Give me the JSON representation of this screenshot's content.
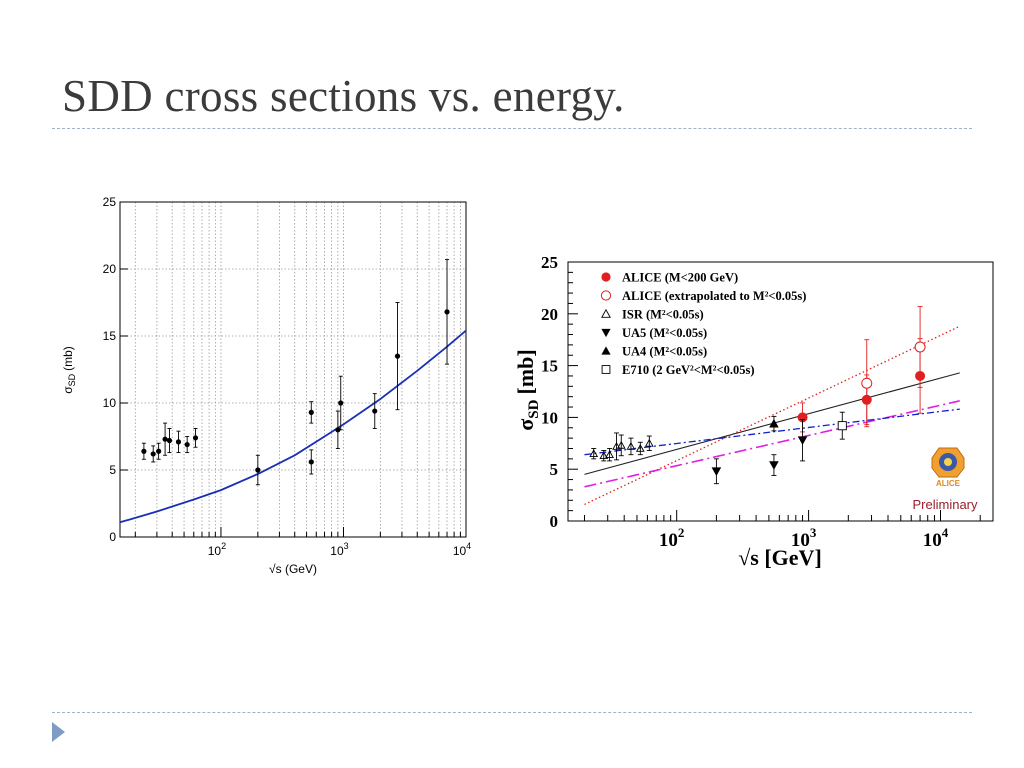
{
  "slide": {
    "title": "SDD cross sections vs. energy."
  },
  "colors": {
    "title_text": "#3b3b3b",
    "separator": "#9fb2c8",
    "nav_arrow": "#7f9cc4",
    "fit_curve": "#1a2fb5",
    "alice_red": "#e02020",
    "preliminary": "#9a1f2a"
  },
  "icons": {
    "nav": "triangle-right-icon",
    "logo": "alice-logo-icon"
  },
  "chart_data": [
    {
      "type": "scatter",
      "title": "",
      "xlabel": "√s (GeV)",
      "ylabel": "σ_SD (mb)",
      "ylabel_main": "σ",
      "ylabel_sub": "SD",
      "ylabel_unit": "(mb)",
      "xscale": "log",
      "xlim": [
        15,
        10000
      ],
      "ylim": [
        0,
        25
      ],
      "yticks": [
        0,
        5,
        10,
        15,
        20,
        25
      ],
      "xtick_labels": [
        {
          "value": 100,
          "base": "10",
          "exp": "2"
        },
        {
          "value": 1000,
          "base": "10",
          "exp": "3"
        },
        {
          "value": 10000,
          "base": "10",
          "exp": "4"
        }
      ],
      "grid": true,
      "series": [
        {
          "kind": "points",
          "x": [
            23.5,
            28,
            31,
            35,
            38,
            45,
            53,
            62,
            200,
            546,
            546,
            900,
            950,
            1800,
            2760,
            7000
          ],
          "y": [
            6.4,
            6.2,
            6.4,
            7.3,
            7.2,
            7.1,
            6.9,
            7.4,
            5.0,
            9.3,
            5.6,
            8.0,
            10.0,
            9.4,
            13.5,
            16.8
          ],
          "err": [
            0.6,
            0.6,
            0.6,
            1.2,
            0.9,
            0.8,
            0.6,
            0.7,
            1.1,
            0.8,
            0.9,
            1.4,
            2.0,
            1.3,
            4.0,
            3.9
          ]
        },
        {
          "kind": "fit-curve",
          "x": [
            15,
            30,
            60,
            100,
            200,
            400,
            700,
            1000,
            2000,
            4000,
            7000,
            10000
          ],
          "y": [
            1.1,
            1.9,
            2.8,
            3.5,
            4.7,
            6.1,
            7.5,
            8.4,
            10.3,
            12.4,
            14.2,
            15.4
          ]
        }
      ]
    },
    {
      "type": "scatter",
      "title": "",
      "xlabel": "√s [GeV]",
      "ylabel": "σ_SD [mb]",
      "ylabel_main": "σ",
      "ylabel_sub": "SD",
      "ylabel_unit": "[mb]",
      "xscale": "log",
      "xlim": [
        15,
        25000
      ],
      "ylim": [
        0,
        25
      ],
      "yticks": [
        0,
        5,
        10,
        15,
        20,
        25
      ],
      "xtick_labels": [
        {
          "value": 100,
          "base": "10",
          "exp": "2"
        },
        {
          "value": 1000,
          "base": "10",
          "exp": "3"
        },
        {
          "value": 10000,
          "base": "10",
          "exp": "4"
        }
      ],
      "grid": false,
      "legend_position": "top-left",
      "legend": [
        {
          "marker": "filled-circle",
          "label": "ALICE (M<200 GeV)"
        },
        {
          "marker": "open-circle",
          "label": "ALICE (extrapolated to M²<0.05s)"
        },
        {
          "marker": "open-triangle",
          "label": "ISR  (M²<0.05s)"
        },
        {
          "marker": "filled-triangle-down",
          "label": "UA5  (M²<0.05s)"
        },
        {
          "marker": "filled-triangle",
          "label": "UA4  (M²<0.05s)"
        },
        {
          "marker": "open-square",
          "label": "E710 (2 GeV²<M²<0.05s)"
        }
      ],
      "series": [
        {
          "name": "ALICE (M<200 GeV)",
          "x": [
            900,
            2760,
            7000
          ],
          "y": [
            10.0,
            11.7,
            14.0
          ],
          "err": [
            1.4,
            2.4,
            3.6
          ]
        },
        {
          "name": "ALICE (extrapolated to M²<0.05s)",
          "x": [
            2760,
            7000
          ],
          "y": [
            13.3,
            16.8
          ],
          "err": [
            4.2,
            3.9
          ]
        },
        {
          "name": "ISR  (M²<0.05s)",
          "x": [
            23.5,
            28,
            31,
            35,
            38,
            45,
            53,
            62
          ],
          "y": [
            6.5,
            6.3,
            6.4,
            7.2,
            7.3,
            7.2,
            7.0,
            7.5
          ],
          "err": [
            0.5,
            0.5,
            0.6,
            1.3,
            1.0,
            0.8,
            0.6,
            0.7
          ]
        },
        {
          "name": "UA5  (M²<0.05s)",
          "x": [
            200,
            546,
            900
          ],
          "y": [
            4.8,
            5.4,
            7.8
          ],
          "err": [
            1.2,
            1.0,
            2.0
          ]
        },
        {
          "name": "UA4  (M²<0.05s)",
          "x": [
            546
          ],
          "y": [
            9.4
          ],
          "err": [
            0.7
          ]
        },
        {
          "name": "E710 (2 GeV²<M²<0.05s)",
          "x": [
            1800
          ],
          "y": [
            9.2
          ],
          "err": [
            1.3
          ]
        }
      ],
      "models": [
        {
          "style": "solid-black",
          "x": [
            20,
            14000
          ],
          "y": [
            4.5,
            14.3
          ]
        },
        {
          "style": "dotted-red",
          "x": [
            20,
            14000
          ],
          "y": [
            1.6,
            18.8
          ]
        },
        {
          "style": "dashdot-magenta",
          "x": [
            20,
            14000
          ],
          "y": [
            3.3,
            11.6
          ]
        },
        {
          "style": "dashdot-blue",
          "x": [
            20,
            14000
          ],
          "y": [
            6.4,
            10.8
          ]
        }
      ],
      "annotations": {
        "logo_text": "ALICE",
        "preliminary": "Preliminary"
      }
    }
  ]
}
